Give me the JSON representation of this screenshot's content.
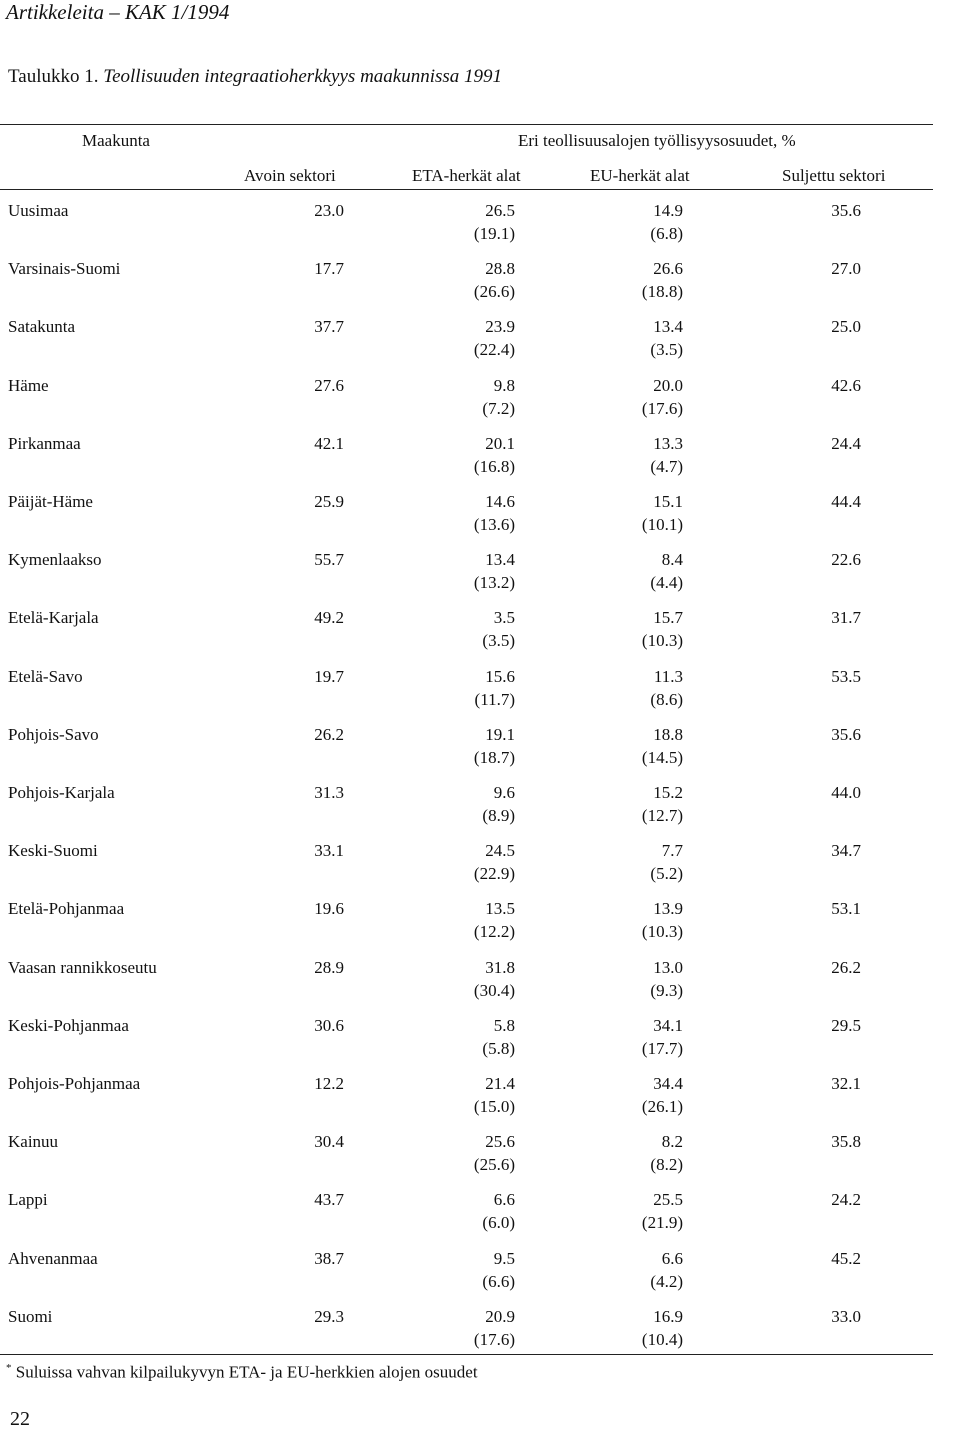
{
  "header": {
    "running_title": "Artikkeleita – KAK 1/1994"
  },
  "caption": {
    "label": "Taulukko 1.",
    "title": "Teollisuuden integraatioherkkyys maakunnissa 1991"
  },
  "table": {
    "col_region": "Maakunta",
    "group_header": "Eri teollisuusalojen työllisyysosuudet, %",
    "columns": [
      "Avoin sektori",
      "ETA-herkät alat",
      "EU-herkät alat",
      "Suljettu sektori"
    ],
    "rows": [
      {
        "region": "Uusimaa",
        "avoin": "23.0",
        "eta": "26.5",
        "eta_sub": "(19.1)",
        "eu": "14.9",
        "eu_sub": "(6.8)",
        "suljettu": "35.6"
      },
      {
        "region": "Varsinais-Suomi",
        "avoin": "17.7",
        "eta": "28.8",
        "eta_sub": "(26.6)",
        "eu": "26.6",
        "eu_sub": "(18.8)",
        "suljettu": "27.0"
      },
      {
        "region": "Satakunta",
        "avoin": "37.7",
        "eta": "23.9",
        "eta_sub": "(22.4)",
        "eu": "13.4",
        "eu_sub": "(3.5)",
        "suljettu": "25.0"
      },
      {
        "region": "Häme",
        "avoin": "27.6",
        "eta": "9.8",
        "eta_sub": "(7.2)",
        "eu": "20.0",
        "eu_sub": "(17.6)",
        "suljettu": "42.6"
      },
      {
        "region": "Pirkanmaa",
        "avoin": "42.1",
        "eta": "20.1",
        "eta_sub": "(16.8)",
        "eu": "13.3",
        "eu_sub": "(4.7)",
        "suljettu": "24.4"
      },
      {
        "region": "Päijät-Häme",
        "avoin": "25.9",
        "eta": "14.6",
        "eta_sub": "(13.6)",
        "eu": "15.1",
        "eu_sub": "(10.1)",
        "suljettu": "44.4"
      },
      {
        "region": "Kymenlaakso",
        "avoin": "55.7",
        "eta": "13.4",
        "eta_sub": "(13.2)",
        "eu": "8.4",
        "eu_sub": "(4.4)",
        "suljettu": "22.6"
      },
      {
        "region": "Etelä-Karjala",
        "avoin": "49.2",
        "eta": "3.5",
        "eta_sub": "(3.5)",
        "eu": "15.7",
        "eu_sub": "(10.3)",
        "suljettu": "31.7"
      },
      {
        "region": "Etelä-Savo",
        "avoin": "19.7",
        "eta": "15.6",
        "eta_sub": "(11.7)",
        "eu": "11.3",
        "eu_sub": "(8.6)",
        "suljettu": "53.5"
      },
      {
        "region": "Pohjois-Savo",
        "avoin": "26.2",
        "eta": "19.1",
        "eta_sub": "(18.7)",
        "eu": "18.8",
        "eu_sub": "(14.5)",
        "suljettu": "35.6"
      },
      {
        "region": "Pohjois-Karjala",
        "avoin": "31.3",
        "eta": "9.6",
        "eta_sub": "(8.9)",
        "eu": "15.2",
        "eu_sub": "(12.7)",
        "suljettu": "44.0"
      },
      {
        "region": "Keski-Suomi",
        "avoin": "33.1",
        "eta": "24.5",
        "eta_sub": "(22.9)",
        "eu": "7.7",
        "eu_sub": "(5.2)",
        "suljettu": "34.7"
      },
      {
        "region": "Etelä-Pohjanmaa",
        "avoin": "19.6",
        "eta": "13.5",
        "eta_sub": "(12.2)",
        "eu": "13.9",
        "eu_sub": "(10.3)",
        "suljettu": "53.1"
      },
      {
        "region": "Vaasan rannikkoseutu",
        "avoin": "28.9",
        "eta": "31.8",
        "eta_sub": "(30.4)",
        "eu": "13.0",
        "eu_sub": "(9.3)",
        "suljettu": "26.2"
      },
      {
        "region": "Keski-Pohjanmaa",
        "avoin": "30.6",
        "eta": "5.8",
        "eta_sub": "(5.8)",
        "eu": "34.1",
        "eu_sub": "(17.7)",
        "suljettu": "29.5"
      },
      {
        "region": "Pohjois-Pohjanmaa",
        "avoin": "12.2",
        "eta": "21.4",
        "eta_sub": "(15.0)",
        "eu": "34.4",
        "eu_sub": "(26.1)",
        "suljettu": "32.1"
      },
      {
        "region": "Kainuu",
        "avoin": "30.4",
        "eta": "25.6",
        "eta_sub": "(25.6)",
        "eu": "8.2",
        "eu_sub": "(8.2)",
        "suljettu": "35.8"
      },
      {
        "region": "Lappi",
        "avoin": "43.7",
        "eta": "6.6",
        "eta_sub": "(6.0)",
        "eu": "25.5",
        "eu_sub": "(21.9)",
        "suljettu": "24.2"
      },
      {
        "region": "Ahvenanmaa",
        "avoin": "38.7",
        "eta": "9.5",
        "eta_sub": "(6.6)",
        "eu": "6.6",
        "eu_sub": "(4.2)",
        "suljettu": "45.2"
      },
      {
        "region": "Suomi",
        "avoin": "29.3",
        "eta": "20.9",
        "eta_sub": "(17.6)",
        "eu": "16.9",
        "eu_sub": "(10.4)",
        "suljettu": "33.0"
      }
    ]
  },
  "footnote": {
    "mark": "*",
    "text": "Suluissa vahvan kilpailukyvyn ETA- ja EU-herkkien alojen osuudet"
  },
  "page_number": "22"
}
